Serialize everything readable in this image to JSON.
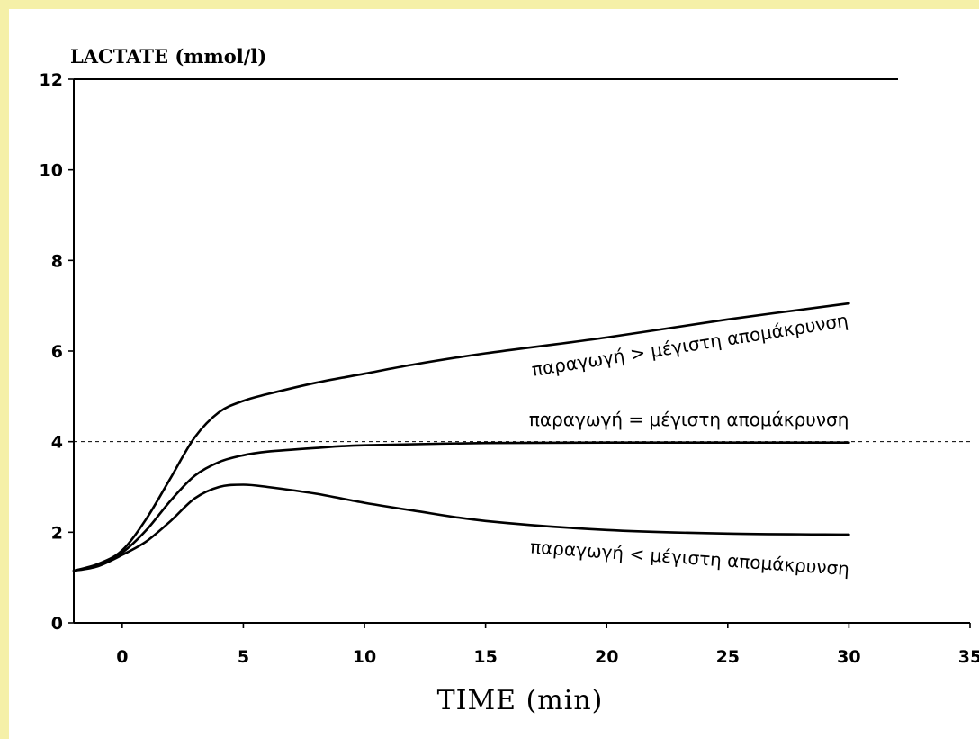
{
  "chart_data": {
    "type": "line",
    "title": "",
    "ylabel": "LACTATE (mmol/l)",
    "xlabel": "TIME (min)",
    "xlim": [
      -2,
      35
    ],
    "ylim": [
      0,
      12
    ],
    "xticks": [
      0,
      5,
      10,
      15,
      20,
      25,
      30,
      35
    ],
    "yticks": [
      0,
      2,
      4,
      6,
      8,
      10,
      12
    ],
    "grid": false,
    "reference_line": {
      "y": 4,
      "style": "dashed"
    },
    "series": [
      {
        "name": "παραγωγή > μέγιστη απομάκρυνση",
        "x": [
          -2,
          -1,
          0,
          1,
          2,
          3,
          4,
          5,
          6,
          8,
          10,
          12,
          15,
          20,
          25,
          30
        ],
        "y": [
          1.15,
          1.3,
          1.6,
          2.3,
          3.2,
          4.1,
          4.65,
          4.9,
          5.05,
          5.3,
          5.5,
          5.7,
          5.95,
          6.3,
          6.7,
          7.05
        ]
      },
      {
        "name": "παραγωγή = μέγιστη απομάκρυνση",
        "x": [
          -2,
          -1,
          0,
          1,
          2,
          3,
          4,
          5,
          6,
          8,
          10,
          15,
          20,
          25,
          30
        ],
        "y": [
          1.15,
          1.28,
          1.55,
          2.05,
          2.7,
          3.25,
          3.55,
          3.7,
          3.78,
          3.86,
          3.92,
          3.97,
          3.98,
          3.98,
          3.98
        ]
      },
      {
        "name": "παραγωγή < μέγιστη απομάκρυνση",
        "x": [
          -2,
          -1,
          0,
          1,
          2,
          3,
          4,
          5,
          6,
          8,
          10,
          12,
          15,
          20,
          25,
          30
        ],
        "y": [
          1.15,
          1.25,
          1.5,
          1.8,
          2.25,
          2.75,
          3.0,
          3.05,
          3.0,
          2.85,
          2.65,
          2.48,
          2.25,
          2.05,
          1.97,
          1.95
        ]
      }
    ]
  }
}
